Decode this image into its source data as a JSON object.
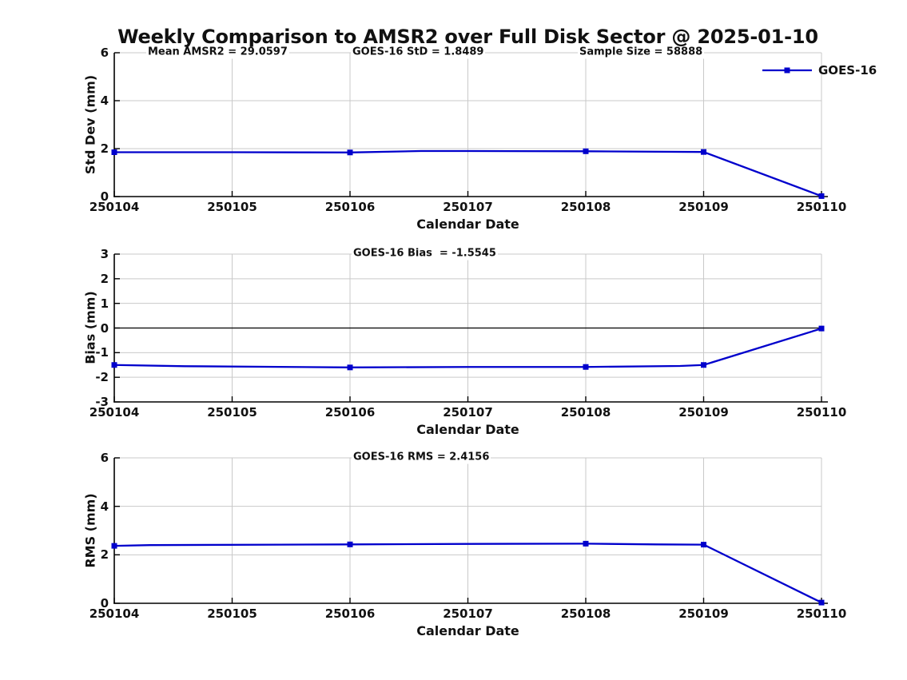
{
  "title": "Weekly Comparison to AMSR2 over Full Disk Sector @ 2025-01-10",
  "colors": {
    "series": "#0000CC",
    "grid": "#C9C9C9",
    "axis": "#000000",
    "zero_line": "#000000",
    "text": "#111111",
    "background": "#FFFFFF"
  },
  "legend": {
    "label": "GOES-16",
    "position": "top-right"
  },
  "chart_data": [
    {
      "type": "line",
      "series_name": "GOES-16",
      "ylabel": "Std Dev (mm)",
      "xlabel": "Calendar Date",
      "ylim": [
        0,
        6
      ],
      "ytick_values": [
        0,
        2,
        4,
        6
      ],
      "ytick_labels": [
        "0",
        "2",
        "4",
        "6"
      ],
      "xlim": [
        250104,
        250110
      ],
      "xtick_values": [
        250104,
        250105,
        250106,
        250107,
        250108,
        250109,
        250110
      ],
      "xtick_labels": [
        "250104",
        "250105",
        "250106",
        "250107",
        "250108",
        "250109",
        "250110"
      ],
      "grid": true,
      "zero_line": false,
      "annotations": [
        {
          "text": "Mean AMSR2 = 29.0597"
        },
        {
          "text": "GOES-16 StD = 1.8489"
        },
        {
          "text": "Sample Size = 58888"
        }
      ],
      "x": [
        250104,
        250105,
        250106,
        250106.6,
        250107,
        250108,
        250109,
        250110
      ],
      "y": [
        1.85,
        1.85,
        1.84,
        1.9,
        1.9,
        1.89,
        1.86,
        0.02
      ],
      "markers": {
        "x": [
          250104,
          250106,
          250108,
          250109,
          250110
        ],
        "y": [
          1.85,
          1.84,
          1.89,
          1.86,
          0.02
        ]
      }
    },
    {
      "type": "line",
      "series_name": "GOES-16",
      "ylabel": "Bias (mm)",
      "xlabel": "Calendar Date",
      "ylim": [
        -3,
        3
      ],
      "ytick_values": [
        -3,
        -2,
        -1,
        0,
        1,
        2,
        3
      ],
      "ytick_labels": [
        "-3",
        "-2",
        "-1",
        "0",
        "1",
        "2",
        "3"
      ],
      "xlim": [
        250104,
        250110
      ],
      "xtick_values": [
        250104,
        250105,
        250106,
        250107,
        250108,
        250109,
        250110
      ],
      "xtick_labels": [
        "250104",
        "250105",
        "250106",
        "250107",
        "250108",
        "250109",
        "250110"
      ],
      "grid": true,
      "zero_line": true,
      "annotations": [
        {
          "text": "GOES-16 Bias  = -1.5545"
        }
      ],
      "x": [
        250104,
        250104.6,
        250105.5,
        250106,
        250107,
        250108,
        250108.8,
        250109,
        250110
      ],
      "y": [
        -1.5,
        -1.55,
        -1.58,
        -1.6,
        -1.58,
        -1.58,
        -1.54,
        -1.5,
        -0.02
      ],
      "markers": {
        "x": [
          250104,
          250106,
          250108,
          250109,
          250110
        ],
        "y": [
          -1.5,
          -1.6,
          -1.58,
          -1.5,
          -0.02
        ]
      }
    },
    {
      "type": "line",
      "series_name": "GOES-16",
      "ylabel": "RMS (mm)",
      "xlabel": "Calendar Date",
      "ylim": [
        0,
        6
      ],
      "ytick_values": [
        0,
        2,
        4,
        6
      ],
      "ytick_labels": [
        "0",
        "2",
        "4",
        "6"
      ],
      "xlim": [
        250104,
        250110
      ],
      "xtick_values": [
        250104,
        250105,
        250106,
        250107,
        250108,
        250109,
        250110
      ],
      "xtick_labels": [
        "250104",
        "250105",
        "250106",
        "250107",
        "250108",
        "250109",
        "250110"
      ],
      "grid": true,
      "zero_line": false,
      "annotations": [
        {
          "text": "GOES-16 RMS = 2.4156"
        }
      ],
      "x": [
        250104,
        250104.3,
        250105.4,
        250106,
        250107,
        250108,
        250108.6,
        250109,
        250110
      ],
      "y": [
        2.37,
        2.4,
        2.42,
        2.43,
        2.45,
        2.46,
        2.43,
        2.42,
        0.03
      ],
      "markers": {
        "x": [
          250104,
          250106,
          250108,
          250109,
          250110
        ],
        "y": [
          2.37,
          2.43,
          2.46,
          2.42,
          0.03
        ]
      }
    }
  ]
}
